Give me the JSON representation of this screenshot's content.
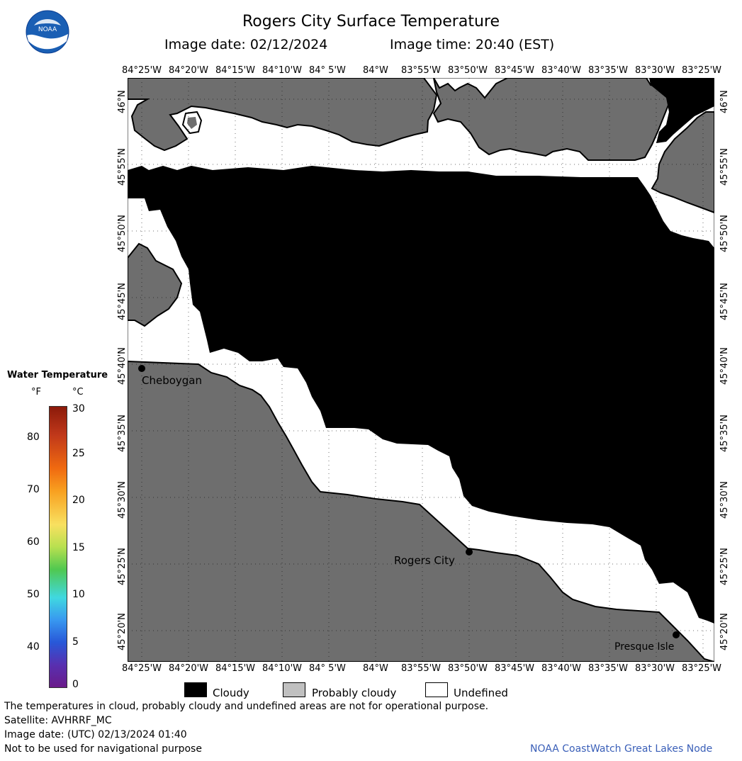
{
  "title": "Rogers City Surface Temperature",
  "image_date": "Image date: 02/12/2024",
  "image_time": "Image time: 20:40 (EST)",
  "logo": "NOAA",
  "lon_labels": [
    "84°25'W",
    "84°20'W",
    "84°15'W",
    "84°10'W",
    "84° 5'W",
    "84°W",
    "83°55'W",
    "83°50'W",
    "83°45'W",
    "83°40'W",
    "83°35'W",
    "83°30'W",
    "83°25'W"
  ],
  "lat_labels": [
    "46°N",
    "45°55'N",
    "45°50'N",
    "45°45'N",
    "45°40'N",
    "45°35'N",
    "45°30'N",
    "45°25'N",
    "45°20'N"
  ],
  "places": {
    "cheboygan": "Cheboygan",
    "rogers_city": "Rogers City",
    "presque_isle": "Presque Isle"
  },
  "scale": {
    "title": "Water Temperature",
    "unit_f": "°F",
    "unit_c": "°C",
    "f_ticks": [
      "80",
      "70",
      "60",
      "50",
      "40"
    ],
    "c_ticks": [
      "30",
      "25",
      "20",
      "15",
      "10",
      "5",
      "0"
    ]
  },
  "legend": {
    "cloudy": "Cloudy",
    "probably_cloudy": "Probably cloudy",
    "undefined": "Undefined",
    "colors": {
      "cloudy": "#000000",
      "probably_cloudy": "#c0c0c0",
      "undefined": "#ffffff",
      "land": "#6e6e6e"
    }
  },
  "footer": {
    "note": "The temperatures in cloud, probably cloudy and undefined areas are not for operational purpose.",
    "satellite": "Satellite: AVHRRF_MC",
    "utc_date": "Image date: (UTC) 02/13/2024  01:40",
    "nav": "Not to be used for navigational purpose",
    "credit": "NOAA CoastWatch Great Lakes Node"
  }
}
